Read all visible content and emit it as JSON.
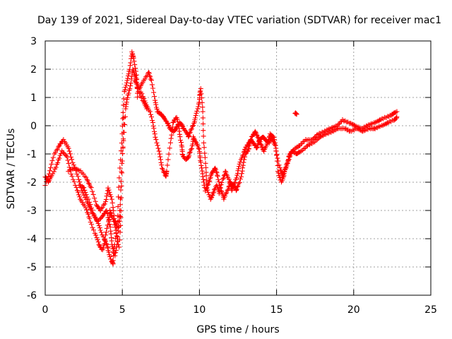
{
  "chart_data": {
    "type": "scatter",
    "title": "Day 139 of 2021, Sidereal Day-to-day VTEC variation (SDTVAR) for receiver mac1",
    "xlabel": "GPS time / hours",
    "ylabel": "SDTVAR / TECUs",
    "xlim": [
      0,
      25
    ],
    "ylim": [
      -6,
      3
    ],
    "xticks": [
      0,
      5,
      10,
      15,
      20,
      25
    ],
    "yticks": [
      -6,
      -5,
      -4,
      -3,
      -2,
      -1,
      0,
      1,
      2,
      3
    ],
    "grid": true,
    "marker": "plus",
    "series": [
      {
        "name": "mac1",
        "color": "#ff0000",
        "traces": [
          [
            [
              0.0,
              -2.1
            ],
            [
              0.3,
              -1.6
            ],
            [
              0.6,
              -1.0
            ],
            [
              0.9,
              -0.7
            ],
            [
              1.2,
              -0.5
            ],
            [
              1.5,
              -0.8
            ],
            [
              1.8,
              -1.3
            ],
            [
              2.1,
              -1.8
            ],
            [
              2.4,
              -2.3
            ],
            [
              2.7,
              -2.7
            ],
            [
              3.0,
              -3.0
            ],
            [
              3.3,
              -3.3
            ],
            [
              3.6,
              -3.7
            ],
            [
              3.9,
              -4.1
            ],
            [
              4.1,
              -4.4
            ],
            [
              4.3,
              -4.8
            ],
            [
              4.4,
              -4.9
            ],
            [
              4.5,
              -4.2
            ],
            [
              4.7,
              -3.2
            ],
            [
              4.85,
              -1.5
            ],
            [
              5.0,
              0.0
            ],
            [
              5.15,
              1.2
            ],
            [
              5.3,
              1.6
            ],
            [
              5.5,
              2.0
            ],
            [
              5.6,
              2.6
            ],
            [
              5.75,
              2.4
            ],
            [
              5.9,
              1.8
            ],
            [
              6.0,
              1.0
            ]
          ],
          [
            [
              0.0,
              -1.8
            ],
            [
              0.2,
              -2.0
            ],
            [
              0.5,
              -1.7
            ],
            [
              0.8,
              -1.3
            ],
            [
              1.1,
              -0.9
            ],
            [
              1.4,
              -1.1
            ],
            [
              1.7,
              -1.7
            ],
            [
              2.0,
              -2.2
            ],
            [
              2.3,
              -2.6
            ],
            [
              2.6,
              -2.9
            ],
            [
              2.9,
              -3.3
            ],
            [
              3.2,
              -3.8
            ],
            [
              3.5,
              -4.2
            ],
            [
              3.7,
              -4.4
            ],
            [
              3.9,
              -4.0
            ],
            [
              4.1,
              -3.4
            ],
            [
              4.2,
              -3.0
            ],
            [
              4.4,
              -3.3
            ],
            [
              4.6,
              -3.8
            ],
            [
              4.8,
              -4.3
            ],
            [
              4.9,
              -3.0
            ],
            [
              5.05,
              -0.8
            ],
            [
              5.2,
              0.6
            ],
            [
              5.35,
              1.0
            ],
            [
              5.5,
              1.4
            ],
            [
              5.7,
              2.0
            ],
            [
              5.85,
              1.7
            ],
            [
              6.0,
              1.3
            ],
            [
              6.3,
              0.9
            ],
            [
              6.6,
              0.6
            ]
          ],
          [
            [
              1.5,
              -1.6
            ],
            [
              1.9,
              -1.5
            ],
            [
              2.3,
              -1.6
            ],
            [
              2.7,
              -1.9
            ],
            [
              3.0,
              -2.2
            ],
            [
              3.3,
              -2.8
            ],
            [
              3.6,
              -3.0
            ],
            [
              3.9,
              -2.7
            ],
            [
              4.1,
              -2.2
            ],
            [
              4.3,
              -2.6
            ],
            [
              4.5,
              -3.3
            ],
            [
              4.7,
              -3.6
            ],
            [
              4.9,
              -2.6
            ],
            [
              5.0,
              -1.0
            ],
            [
              5.1,
              0.3
            ]
          ],
          [
            [
              2.2,
              -2.1
            ],
            [
              2.5,
              -2.2
            ],
            [
              2.8,
              -2.6
            ],
            [
              3.1,
              -3.1
            ],
            [
              3.4,
              -3.4
            ],
            [
              3.7,
              -3.2
            ],
            [
              4.0,
              -3.0
            ],
            [
              4.2,
              -3.6
            ],
            [
              4.35,
              -4.2
            ],
            [
              4.5,
              -4.6
            ],
            [
              4.7,
              -4.1
            ],
            [
              4.85,
              -3.2
            ]
          ],
          [
            [
              5.8,
              1.6
            ],
            [
              6.1,
              1.3
            ],
            [
              6.4,
              1.6
            ],
            [
              6.7,
              1.9
            ],
            [
              6.9,
              1.6
            ],
            [
              7.1,
              0.9
            ],
            [
              7.3,
              0.5
            ],
            [
              7.5,
              0.4
            ],
            [
              7.7,
              0.3
            ],
            [
              7.9,
              0.1
            ],
            [
              8.1,
              -0.1
            ],
            [
              8.3,
              -0.2
            ],
            [
              8.5,
              -0.1
            ],
            [
              8.7,
              0.1
            ],
            [
              8.9,
              0.0
            ],
            [
              9.1,
              -0.2
            ],
            [
              9.3,
              -0.4
            ],
            [
              9.5,
              -0.1
            ],
            [
              9.7,
              0.2
            ],
            [
              9.9,
              0.6
            ],
            [
              10.0,
              1.0
            ],
            [
              10.1,
              1.3
            ],
            [
              10.2,
              0.5
            ],
            [
              10.3,
              -0.6
            ],
            [
              10.4,
              -1.5
            ],
            [
              10.5,
              -2.2
            ],
            [
              10.7,
              -2.6
            ],
            [
              10.9,
              -2.4
            ],
            [
              11.1,
              -2.1
            ],
            [
              11.3,
              -2.4
            ],
            [
              11.5,
              -1.9
            ],
            [
              11.7,
              -1.6
            ],
            [
              11.9,
              -1.9
            ],
            [
              12.1,
              -2.3
            ],
            [
              12.3,
              -2.0
            ],
            [
              12.5,
              -1.6
            ],
            [
              12.7,
              -1.2
            ],
            [
              12.9,
              -0.9
            ],
            [
              13.1,
              -0.7
            ],
            [
              13.3,
              -0.5
            ],
            [
              13.5,
              -0.6
            ],
            [
              13.7,
              -0.8
            ],
            [
              13.9,
              -0.5
            ],
            [
              14.1,
              -0.4
            ],
            [
              14.3,
              -0.5
            ],
            [
              14.5,
              -0.6
            ],
            [
              14.7,
              -0.4
            ],
            [
              14.9,
              -0.7
            ],
            [
              15.1,
              -1.6
            ],
            [
              15.3,
              -2.0
            ],
            [
              15.5,
              -1.7
            ],
            [
              15.7,
              -1.3
            ],
            [
              15.9,
              -1.0
            ],
            [
              16.2,
              -0.8
            ],
            [
              16.5,
              -0.7
            ],
            [
              16.9,
              -0.5
            ],
            [
              17.3,
              -0.5
            ],
            [
              17.7,
              -0.3
            ],
            [
              18.1,
              -0.2
            ],
            [
              18.5,
              -0.1
            ],
            [
              18.9,
              0.0
            ],
            [
              19.3,
              0.2
            ],
            [
              19.7,
              0.1
            ],
            [
              20.1,
              0.0
            ],
            [
              20.5,
              -0.1
            ],
            [
              20.9,
              0.0
            ],
            [
              21.3,
              0.1
            ],
            [
              21.7,
              0.2
            ],
            [
              22.1,
              0.3
            ],
            [
              22.5,
              0.4
            ],
            [
              22.8,
              0.5
            ]
          ],
          [
            [
              6.2,
              1.2
            ],
            [
              6.5,
              0.8
            ],
            [
              6.8,
              0.5
            ],
            [
              7.0,
              0.0
            ],
            [
              7.2,
              -0.5
            ],
            [
              7.4,
              -1.0
            ],
            [
              7.6,
              -1.5
            ],
            [
              7.8,
              -1.8
            ],
            [
              7.9,
              -1.6
            ],
            [
              8.1,
              -0.6
            ],
            [
              8.3,
              0.1
            ],
            [
              8.5,
              0.3
            ],
            [
              8.7,
              -0.1
            ],
            [
              8.8,
              -0.6
            ],
            [
              8.9,
              -1.0
            ],
            [
              9.1,
              -1.2
            ],
            [
              9.3,
              -1.1
            ],
            [
              9.5,
              -0.8
            ],
            [
              9.6,
              -0.4
            ],
            [
              9.8,
              -0.6
            ],
            [
              10.0,
              -0.9
            ],
            [
              10.1,
              -1.3
            ],
            [
              10.2,
              -1.8
            ],
            [
              10.4,
              -2.3
            ],
            [
              10.6,
              -2.0
            ],
            [
              10.8,
              -1.7
            ],
            [
              11.0,
              -1.5
            ],
            [
              11.2,
              -1.8
            ],
            [
              11.4,
              -2.3
            ],
            [
              11.6,
              -2.6
            ],
            [
              11.8,
              -2.3
            ],
            [
              12.0,
              -2.0
            ],
            [
              12.2,
              -2.1
            ],
            [
              12.4,
              -2.3
            ],
            [
              12.6,
              -2.0
            ],
            [
              12.8,
              -1.5
            ],
            [
              13.0,
              -1.0
            ],
            [
              13.2,
              -0.8
            ],
            [
              13.4,
              -0.4
            ],
            [
              13.6,
              -0.2
            ],
            [
              13.8,
              -0.4
            ],
            [
              14.0,
              -0.7
            ],
            [
              14.2,
              -0.9
            ],
            [
              14.4,
              -0.6
            ],
            [
              14.6,
              -0.3
            ],
            [
              14.8,
              -0.4
            ],
            [
              15.0,
              -0.9
            ],
            [
              15.2,
              -1.5
            ],
            [
              15.4,
              -1.8
            ],
            [
              15.6,
              -1.5
            ],
            [
              15.8,
              -1.1
            ],
            [
              16.0,
              -0.9
            ],
            [
              16.3,
              -1.0
            ],
            [
              16.6,
              -0.9
            ],
            [
              17.0,
              -0.7
            ],
            [
              17.4,
              -0.6
            ],
            [
              17.8,
              -0.4
            ],
            [
              18.2,
              -0.3
            ],
            [
              18.6,
              -0.2
            ],
            [
              19.0,
              -0.1
            ],
            [
              19.4,
              -0.1
            ],
            [
              19.8,
              -0.2
            ],
            [
              20.2,
              -0.1
            ],
            [
              20.6,
              -0.2
            ],
            [
              21.0,
              -0.1
            ],
            [
              21.4,
              -0.1
            ],
            [
              21.8,
              0.0
            ],
            [
              22.2,
              0.1
            ],
            [
              22.6,
              0.2
            ],
            [
              22.8,
              0.3
            ]
          ],
          [
            [
              16.2,
              0.45
            ],
            [
              16.3,
              0.4
            ]
          ]
        ]
      }
    ]
  }
}
